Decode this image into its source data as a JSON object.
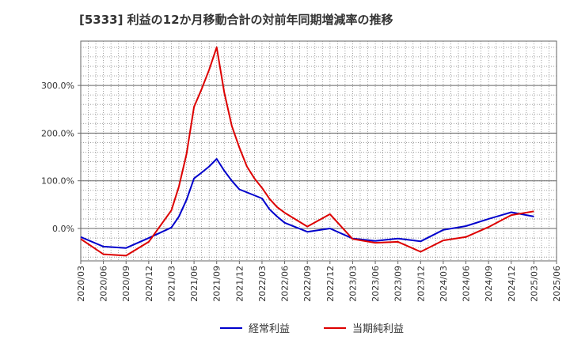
{
  "chart_data": {
    "type": "line",
    "title": "[5333]  利益の12か月移動合計の対前年同期増減率の推移",
    "xlabel": "",
    "ylabel": "",
    "ylim": [
      -0.68,
      3.93
    ],
    "yticks": [
      0,
      1,
      2,
      3
    ],
    "ytick_labels": [
      "0.0%",
      "100.0%",
      "200.0%",
      "300.0%"
    ],
    "x_labels": [
      "2020/03",
      "2020/06",
      "2020/09",
      "2020/12",
      "2021/03",
      "2021/06",
      "2021/09",
      "2021/12",
      "2022/03",
      "2022/06",
      "2022/09",
      "2022/12",
      "2023/03",
      "2023/06",
      "2023/09",
      "2023/12",
      "2024/03",
      "2024/06",
      "2024/09",
      "2024/12",
      "2025/03",
      "2025/06"
    ],
    "grid": true,
    "legend_position": "bottom-center",
    "series": [
      {
        "name": "経常利益",
        "color": "#0000cc",
        "x": [
          "2020/03",
          "2020/06",
          "2020/09",
          "2020/12",
          "2021/03",
          "2021/04",
          "2021/05",
          "2021/06",
          "2021/07",
          "2021/08",
          "2021/09",
          "2021/10",
          "2021/11",
          "2021/12",
          "2022/03",
          "2022/04",
          "2022/05",
          "2022/06",
          "2022/09",
          "2022/12",
          "2023/03",
          "2023/06",
          "2023/09",
          "2023/12",
          "2024/03",
          "2024/06",
          "2024/09",
          "2024/12",
          "2025/03"
        ],
        "values": [
          -0.18,
          -0.38,
          -0.41,
          -0.2,
          0.02,
          0.25,
          0.6,
          1.05,
          1.17,
          1.3,
          1.46,
          1.21,
          1.0,
          0.82,
          0.63,
          0.4,
          0.25,
          0.12,
          -0.07,
          0.0,
          -0.21,
          -0.26,
          -0.21,
          -0.27,
          -0.03,
          0.05,
          0.2,
          0.34,
          0.25
        ]
      },
      {
        "name": "当期純利益",
        "color": "#dd0000",
        "x": [
          "2020/03",
          "2020/06",
          "2020/09",
          "2020/12",
          "2021/03",
          "2021/04",
          "2021/05",
          "2021/06",
          "2021/07",
          "2021/08",
          "2021/09",
          "2021/10",
          "2021/11",
          "2021/12",
          "2022/01",
          "2022/02",
          "2022/03",
          "2022/04",
          "2022/05",
          "2022/06",
          "2022/09",
          "2022/12",
          "2023/03",
          "2023/06",
          "2023/09",
          "2023/12",
          "2024/03",
          "2024/06",
          "2024/09",
          "2024/12",
          "2025/03"
        ],
        "values": [
          -0.22,
          -0.54,
          -0.57,
          -0.28,
          0.38,
          0.88,
          1.56,
          2.55,
          2.92,
          3.33,
          3.8,
          2.85,
          2.15,
          1.7,
          1.3,
          1.05,
          0.85,
          0.62,
          0.45,
          0.33,
          0.04,
          0.3,
          -0.22,
          -0.3,
          -0.28,
          -0.49,
          -0.25,
          -0.18,
          0.03,
          0.28,
          0.36
        ]
      }
    ]
  }
}
